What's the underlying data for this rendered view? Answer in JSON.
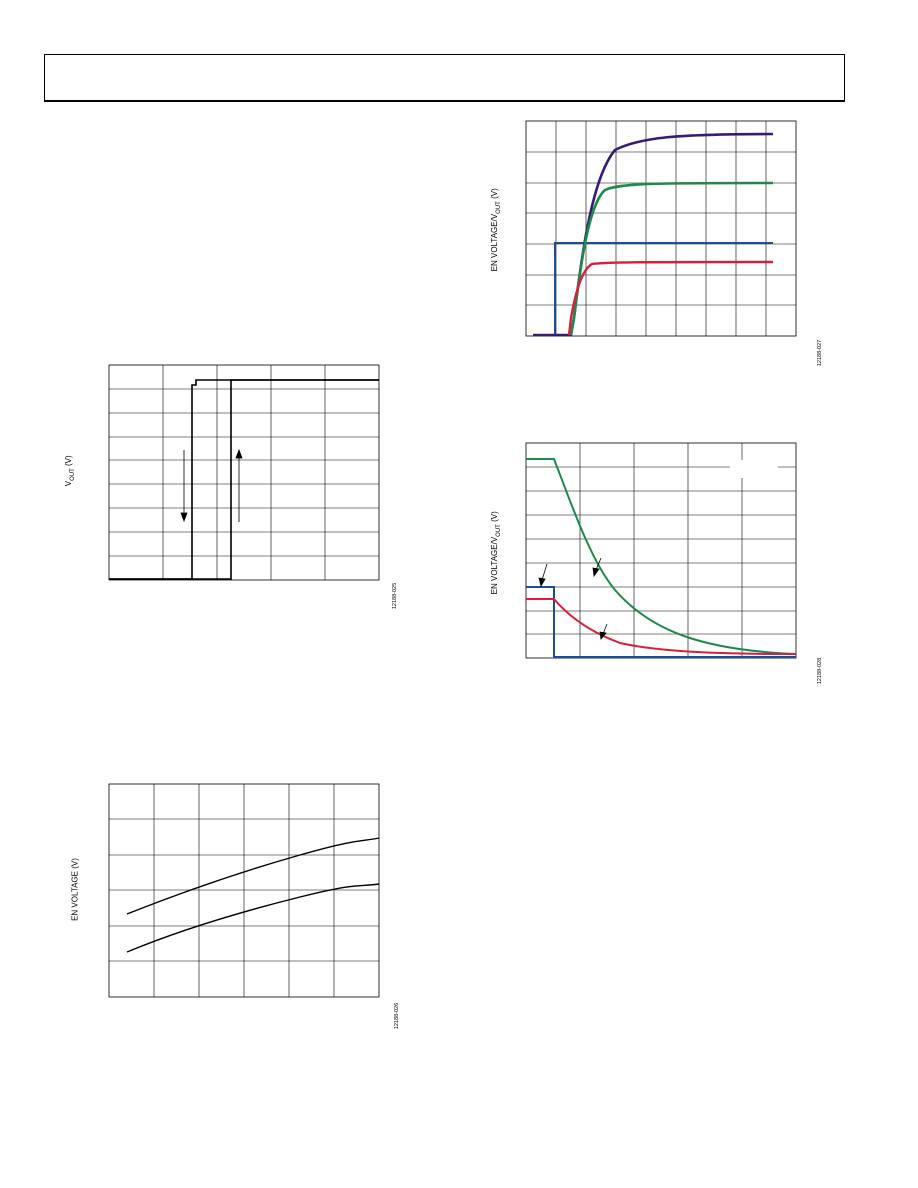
{
  "header": {
    "text": ""
  },
  "charts": [
    {
      "id": "vout-hysteresis",
      "ylabel_main": "V",
      "ylabel_sub": "OUT",
      "ylabel_tail": " (V)",
      "figure_id": "12188-025"
    },
    {
      "id": "en-voltage-vs",
      "ylabel": "EN VOLTAGE (V)",
      "figure_id": "12188-026"
    },
    {
      "id": "startup",
      "ylabel_main": "EN VOLTAGE/V",
      "ylabel_sub": "OUT",
      "ylabel_tail": " (V)",
      "figure_id": "12188-027"
    },
    {
      "id": "shutdown",
      "ylabel_main": "EN VOLTAGE/V",
      "ylabel_sub": "OUT",
      "ylabel_tail": " (V)",
      "figure_id": "12188-028"
    }
  ],
  "chart_data": [
    {
      "type": "line",
      "title": "",
      "ylabel": "VOUT (V)",
      "xlabel": "",
      "grid": true,
      "series": [
        {
          "x": [
            0,
            0.31,
            0.31,
            0.32,
            0.32,
            1.0
          ],
          "values": [
            0,
            0,
            0.98,
            0.98,
            1.0,
            1.0
          ]
        },
        {
          "x": [
            0,
            0.46,
            0.46,
            1.0
          ],
          "values": [
            0,
            0,
            1.0,
            1.0
          ]
        }
      ],
      "annotations": [
        "down arrow",
        "up arrow"
      ]
    },
    {
      "type": "line",
      "title": "",
      "ylabel": "EN VOLTAGE (V)",
      "xlabel": "",
      "grid": true,
      "series": [
        {
          "x": [
            0,
            0.2,
            0.4,
            0.6,
            0.8,
            1.0
          ],
          "values": [
            0.36,
            0.47,
            0.57,
            0.66,
            0.74,
            0.81
          ]
        },
        {
          "x": [
            0,
            0.2,
            0.4,
            0.6,
            0.8,
            1.0
          ],
          "values": [
            0.16,
            0.27,
            0.37,
            0.45,
            0.52,
            0.58
          ]
        }
      ]
    },
    {
      "type": "line",
      "title": "",
      "ylabel": "EN VOLTAGE/VOUT (V)",
      "xlabel": "",
      "grid": true,
      "series": [
        {
          "color": "#3a1a78",
          "x": [
            0,
            0.15,
            0.2,
            0.25,
            0.3,
            0.4,
            0.5,
            0.7,
            1.0
          ],
          "values": [
            0,
            0,
            0.1,
            0.55,
            0.76,
            0.88,
            0.92,
            0.93,
            0.93
          ]
        },
        {
          "color": "#1b8a4a",
          "x": [
            0,
            0.15,
            0.2,
            0.25,
            0.3,
            0.4,
            0.6,
            1.0
          ],
          "values": [
            0,
            0,
            0.1,
            0.55,
            0.68,
            0.71,
            0.71,
            0.71
          ]
        },
        {
          "color": "#1f4e8c",
          "x": [
            0,
            0.09,
            0.09,
            1.0
          ],
          "values": [
            0,
            0,
            0.43,
            0.43
          ]
        },
        {
          "color": "#d61f3a",
          "x": [
            0,
            0.15,
            0.16,
            0.22,
            0.26,
            0.3,
            1.0
          ],
          "values": [
            0,
            0,
            0.1,
            0.28,
            0.33,
            0.34,
            0.34
          ]
        }
      ]
    },
    {
      "type": "line",
      "title": "",
      "ylabel": "EN VOLTAGE/VOUT (V)",
      "xlabel": "",
      "grid": true,
      "series": [
        {
          "color": "#1b8a4a",
          "x": [
            0,
            0.11,
            0.2,
            0.3,
            0.4,
            0.6,
            0.8,
            1.0
          ],
          "values": [
            0.92,
            0.92,
            0.62,
            0.4,
            0.26,
            0.1,
            0.04,
            0.02
          ]
        },
        {
          "color": "#d61f3a",
          "x": [
            0,
            0.11,
            0.2,
            0.3,
            0.4,
            0.6,
            1.0
          ],
          "values": [
            0.27,
            0.27,
            0.15,
            0.08,
            0.05,
            0.02,
            0.02
          ]
        },
        {
          "color": "#1f4e8c",
          "x": [
            0,
            0.11,
            0.11,
            1.0
          ],
          "values": [
            0.32,
            0.32,
            0.0,
            0.0
          ]
        }
      ],
      "annotations": [
        "arrow",
        "arrow",
        "arrow"
      ]
    }
  ]
}
